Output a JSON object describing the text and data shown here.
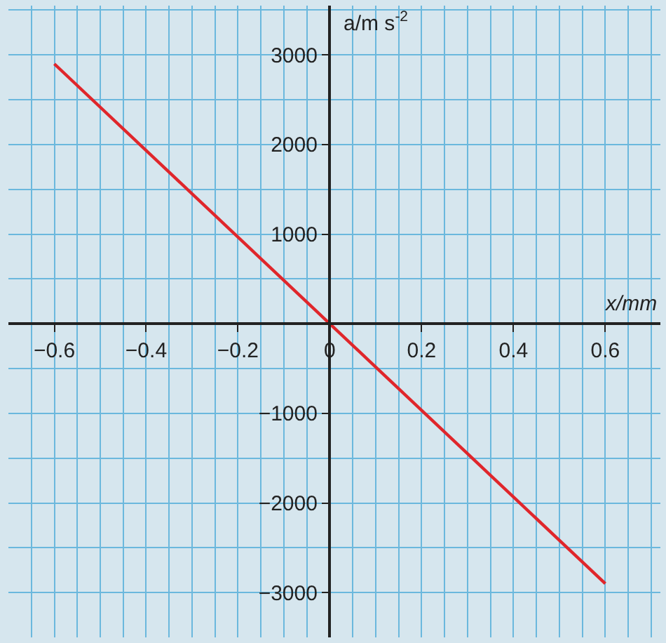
{
  "chart_data": {
    "type": "line",
    "xlabel": "x/mm",
    "ylabel": "a/m s$^{-2}$",
    "x": [
      -0.6,
      0.6
    ],
    "series": [
      {
        "color": "#e0262b",
        "values": [
          2900,
          -2900
        ]
      }
    ],
    "xlim": [
      -0.7,
      0.72
    ],
    "ylim": [
      -3500,
      3550
    ],
    "xticks": [
      {
        "value": -0.6,
        "label": "−0.6"
      },
      {
        "value": -0.4,
        "label": "−0.4"
      },
      {
        "value": -0.2,
        "label": "−0.2"
      },
      0,
      0.2,
      0.4,
      0.6
    ],
    "yticks": [
      {
        "value": -3000,
        "label": "−3000"
      },
      {
        "value": -2000,
        "label": "−2000"
      },
      {
        "value": -1000,
        "label": "−1000"
      },
      1000,
      2000,
      3000
    ],
    "grid": true,
    "line_style": "solid",
    "marker": "none"
  }
}
